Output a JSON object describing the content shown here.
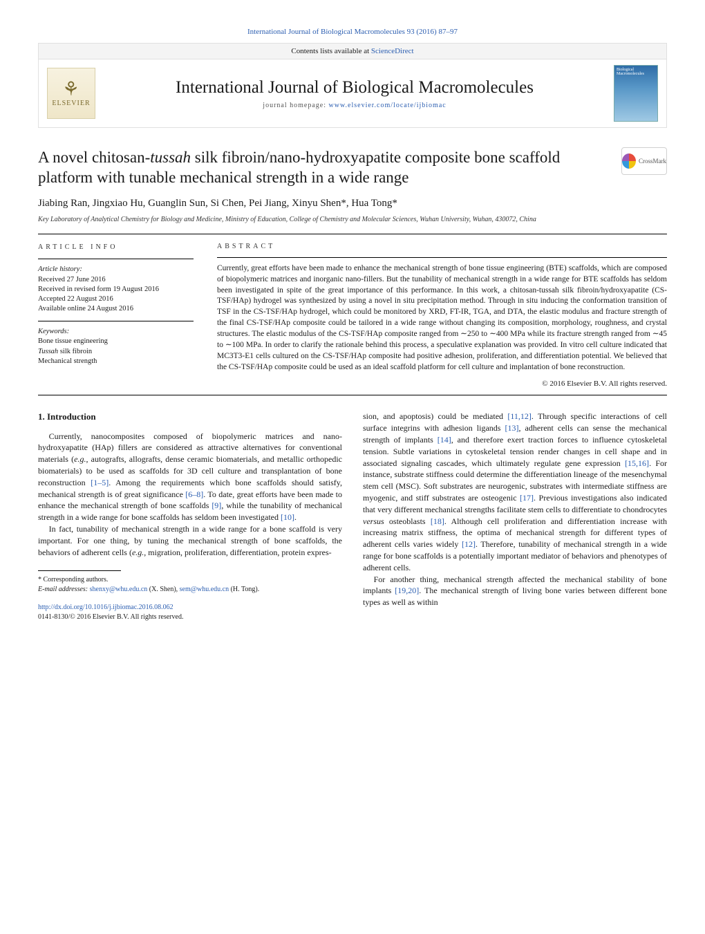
{
  "header": {
    "citation_link": "International Journal of Biological Macromolecules 93 (2016) 87–97",
    "contents_prefix": "Contents lists available at ",
    "contents_link": "ScienceDirect",
    "journal_name": "International Journal of Biological Macromolecules",
    "homepage_prefix": "journal homepage: ",
    "homepage_link": "www.elsevier.com/locate/ijbiomac",
    "publisher_name": "ELSEVIER",
    "cover_text_top": "Biological",
    "cover_text_bot": "Macromolecules",
    "crossmark": "CrossMark"
  },
  "article": {
    "title_pre": "A novel chitosan-",
    "title_ital": "tussah",
    "title_post": " silk fibroin/nano-hydroxyapatite composite bone scaffold platform with tunable mechanical strength in a wide range",
    "authors": "Jiabing Ran, Jingxiao Hu, Guanglin Sun, Si Chen, Pei Jiang, Xinyu Shen*, Hua Tong*",
    "affiliation": "Key Laboratory of Analytical Chemistry for Biology and Medicine, Ministry of Education, College of Chemistry and Molecular Sciences, Wuhan University, Wuhan, 430072, China"
  },
  "meta": {
    "info_label": "ARTICLE INFO",
    "history_label": "Article history:",
    "received": "Received 27 June 2016",
    "revised": "Received in revised form 19 August 2016",
    "accepted": "Accepted 22 August 2016",
    "online": "Available online 24 August 2016",
    "keywords_label": "Keywords:",
    "kw1": "Bone tissue engineering",
    "kw2_pre": "",
    "kw2_ital": "Tussah",
    "kw2_post": " silk fibroin",
    "kw3": "Mechanical strength"
  },
  "abstract": {
    "label": "ABSTRACT",
    "text": "Currently, great efforts have been made to enhance the mechanical strength of bone tissue engineering (BTE) scaffolds, which are composed of biopolymeric matrices and inorganic nano-fillers. But the tunability of mechanical strength in a wide range for BTE scaffolds has seldom been investigated in spite of the great importance of this performance. In this work, a chitosan-tussah silk fibroin/hydroxyapatite (CS-TSF/HAp) hydrogel was synthesized by using a novel in situ precipitation method. Through in situ inducing the conformation transition of TSF in the CS-TSF/HAp hydrogel, which could be monitored by XRD, FT-IR, TGA, and DTA, the elastic modulus and fracture strength of the final CS-TSF/HAp composite could be tailored in a wide range without changing its composition, morphology, roughness, and crystal structures. The elastic modulus of the CS-TSF/HAp composite ranged from ∼250 to ∼400 MPa while its fracture strength ranged from ∼45 to ∼100 MPa. In order to clarify the rationale behind this process, a speculative explanation was provided. In vitro cell culture indicated that MC3T3-E1 cells cultured on the CS-TSF/HAp composite had positive adhesion, proliferation, and differentiation potential. We believed that the CS-TSF/HAp composite could be used as an ideal scaffold platform for cell culture and implantation of bone reconstruction.",
    "copyright": "© 2016 Elsevier B.V. All rights reserved."
  },
  "body": {
    "intro_heading": "1. Introduction",
    "p1_a": "Currently, nanocomposites composed of biopolymeric matrices and nano-hydroxyapatite (HAp) fillers are considered as attractive alternatives for conventional materials (",
    "p1_eg": "e.g.",
    "p1_b": ", autografts, allografts, dense ceramic biomaterials, and metallic orthopedic biomaterials) to be used as scaffolds for 3D cell culture and transplantation of bone reconstruction ",
    "p1_ref1": "[1–5]",
    "p1_c": ". Among the requirements which bone scaffolds should satisfy, mechanical strength is of great significance ",
    "p1_ref2": "[6–8]",
    "p1_d": ". To date, great efforts have been made to enhance the mechanical strength of bone scaffolds ",
    "p1_ref3": "[9]",
    "p1_e": ", while the tunability of mechanical strength in a wide range for bone scaffolds has seldom been investigated ",
    "p1_ref4": "[10]",
    "p1_f": ".",
    "p2_a": "In fact, tunability of mechanical strength in a wide range for a bone scaffold is very important. For one thing, by tuning the mechanical strength of bone scaffolds, the behaviors of adherent cells (",
    "p2_eg": "e.g.",
    "p2_b": ", migration, proliferation, differentiation, protein expres-",
    "p3_a": "sion, and apoptosis) could be mediated ",
    "p3_ref1": "[11,12]",
    "p3_b": ". Through specific interactions of cell surface integrins with adhesion ligands ",
    "p3_ref2": "[13]",
    "p3_c": ", adherent cells can sense the mechanical strength of implants ",
    "p3_ref3": "[14]",
    "p3_d": ", and therefore exert traction forces to influence cytoskeletal tension. Subtle variations in cytoskeletal tension render changes in cell shape and in associated signaling cascades, which ultimately regulate gene expression ",
    "p3_ref4": "[15,16]",
    "p3_e": ". For instance, substrate stiffness could determine the differentiation lineage of the mesenchymal stem cell (MSC). Soft substrates are neurogenic, substrates with intermediate stiffness are myogenic, and stiff substrates are osteogenic ",
    "p3_ref5": "[17]",
    "p3_f": ". Previous investigations also indicated that very different mechanical strengths facilitate stem cells to differentiate to chondrocytes ",
    "p3_vs": "versus",
    "p3_g": " osteoblasts ",
    "p3_ref6": "[18]",
    "p3_h": ". Although cell proliferation and differentiation increase with increasing matrix stiffness, the optima of mechanical strength for different types of adherent cells varies widely ",
    "p3_ref7": "[12]",
    "p3_i": ". Therefore, tunability of mechanical strength in a wide range for bone scaffolds is a potentially important mediator of behaviors and phenotypes of adherent cells.",
    "p4_a": "For another thing, mechanical strength affected the mechanical stability of bone implants ",
    "p4_ref1": "[19,20]",
    "p4_b": ". The mechanical strength of living bone varies between different bone types as well as within"
  },
  "footer": {
    "corr_label": "* Corresponding authors.",
    "email_label": "E-mail addresses: ",
    "email1": "shenxy@whu.edu.cn",
    "email1_who": " (X. Shen), ",
    "email2": "sem@whu.edu.cn",
    "email2_who": " (H. Tong).",
    "doi": "http://dx.doi.org/10.1016/j.ijbiomac.2016.08.062",
    "issn_line": "0141-8130/© 2016 Elsevier B.V. All rights reserved."
  },
  "colors": {
    "link": "#2a5db0",
    "text": "#1a1a1a",
    "banner_bg": "#f4f4f4",
    "border": "#e0e0e0"
  }
}
